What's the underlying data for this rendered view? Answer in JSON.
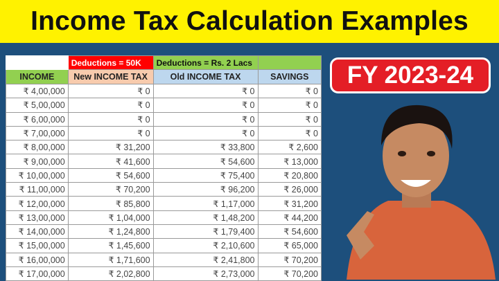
{
  "title": "Income Tax Calculation Examples",
  "badge": "FY 2023-24",
  "table": {
    "deductions_new": "Deductions = 50K",
    "deductions_old": "Deductions = Rs. 2 Lacs",
    "headers": [
      "INCOME",
      "New INCOME TAX",
      "Old INCOME TAX",
      "SAVINGS"
    ],
    "rows": [
      [
        "₹ 4,00,000",
        "₹ 0",
        "₹ 0",
        "₹ 0"
      ],
      [
        "₹ 5,00,000",
        "₹ 0",
        "₹ 0",
        "₹ 0"
      ],
      [
        "₹ 6,00,000",
        "₹ 0",
        "₹ 0",
        "₹ 0"
      ],
      [
        "₹ 7,00,000",
        "₹ 0",
        "₹ 0",
        "₹ 0"
      ],
      [
        "₹ 8,00,000",
        "₹ 31,200",
        "₹ 33,800",
        "₹ 2,600"
      ],
      [
        "₹ 9,00,000",
        "₹ 41,600",
        "₹ 54,600",
        "₹ 13,000"
      ],
      [
        "₹ 10,00,000",
        "₹ 54,600",
        "₹ 75,400",
        "₹ 20,800"
      ],
      [
        "₹ 11,00,000",
        "₹ 70,200",
        "₹ 96,200",
        "₹ 26,000"
      ],
      [
        "₹ 12,00,000",
        "₹ 85,800",
        "₹ 1,17,000",
        "₹ 31,200"
      ],
      [
        "₹ 13,00,000",
        "₹ 1,04,000",
        "₹ 1,48,200",
        "₹ 44,200"
      ],
      [
        "₹ 14,00,000",
        "₹ 1,24,800",
        "₹ 1,79,400",
        "₹ 54,600"
      ],
      [
        "₹ 15,00,000",
        "₹ 1,45,600",
        "₹ 2,10,600",
        "₹ 65,000"
      ],
      [
        "₹ 16,00,000",
        "₹ 1,71,600",
        "₹ 2,41,800",
        "₹ 70,200"
      ],
      [
        "₹ 17,00,000",
        "₹ 2,02,800",
        "₹ 2,73,000",
        "₹ 70,200"
      ]
    ]
  },
  "colors": {
    "banner": "#fff200",
    "background": "#1d4f7c",
    "badge": "#e41e26",
    "green": "#92d050",
    "red": "#ff0000",
    "peach": "#f8cbad",
    "blue": "#bdd7ee"
  }
}
